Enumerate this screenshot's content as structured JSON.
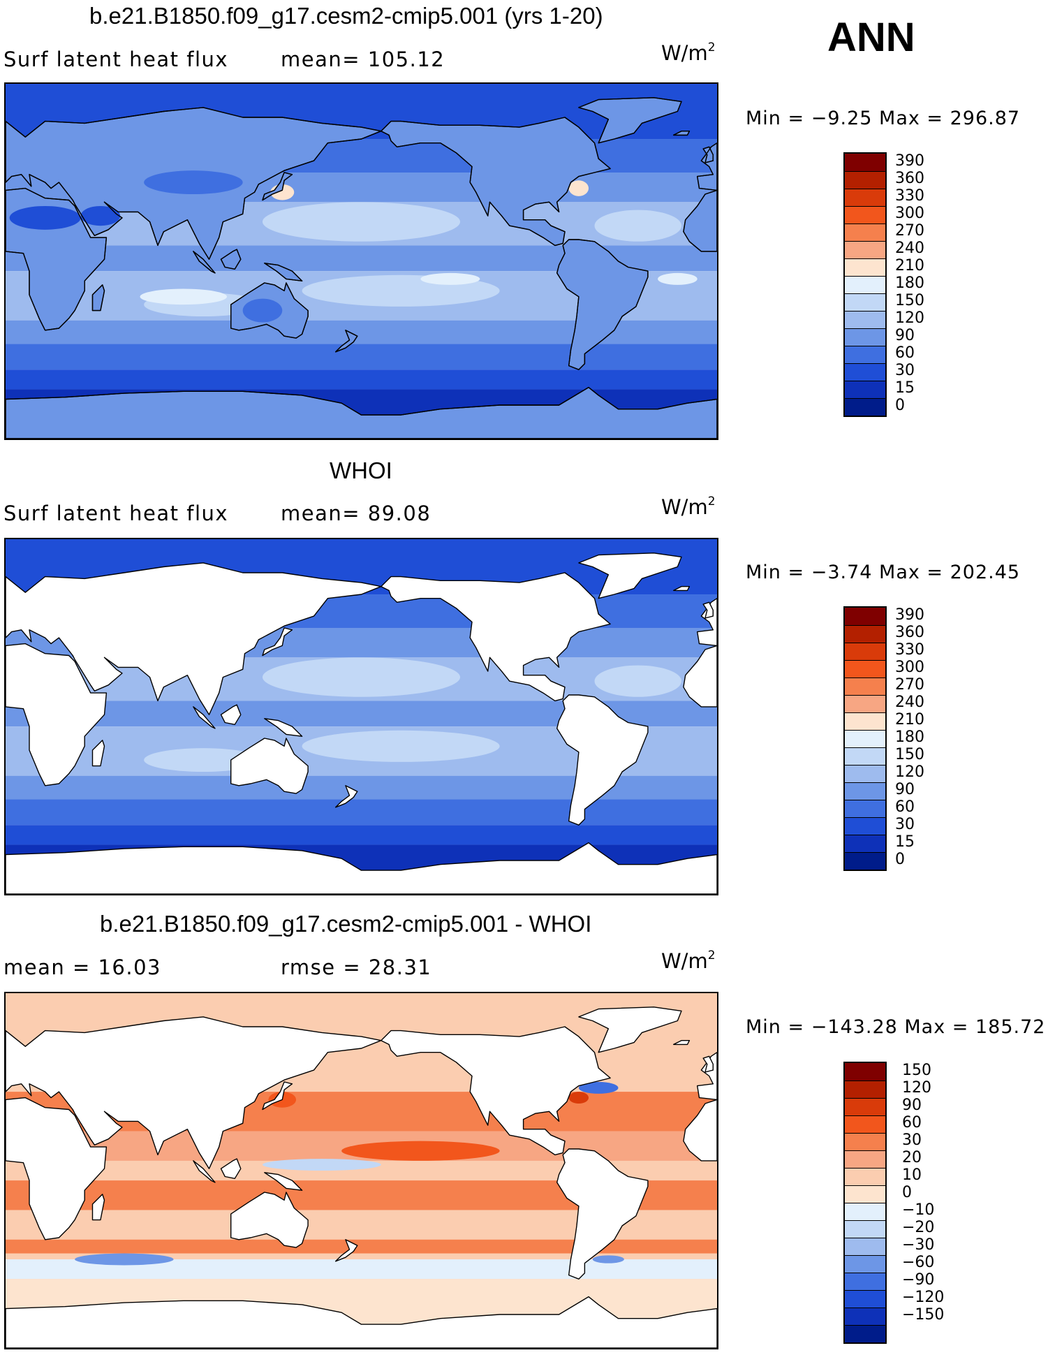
{
  "season": "ANN",
  "panels": [
    {
      "title": "b.e21.B1850.f09_g17.cesm2-cmip5.001 (yrs 1-20)",
      "left_text": "Surf  latent  heat  flux",
      "mid_text": "mean=  105.12",
      "unit_base": "W/m",
      "unit_sup": "2",
      "minmax": "Min  =   −9.25  Max  =  296.87",
      "map_mode": "field",
      "labels": [
        "390",
        "360",
        "330",
        "300",
        "270",
        "240",
        "210",
        "180",
        "150",
        "120",
        "90",
        "60",
        "30",
        "15",
        "0"
      ],
      "colors": [
        "#7f0000",
        "#b32000",
        "#d93b0a",
        "#f2561c",
        "#f5804d",
        "#f7a683",
        "#fde4cf",
        "#e3f0fc",
        "#c2d8f6",
        "#9ebbee",
        "#6d96e6",
        "#3f6fe0",
        "#1f4ed6",
        "#0e31b8",
        "#001c8a"
      ]
    },
    {
      "title": "WHOI",
      "left_text": "Surf  latent  heat  flux",
      "mid_text": "mean=   89.08",
      "unit_base": "W/m",
      "unit_sup": "2",
      "minmax": "Min  =   −3.74  Max  =  202.45",
      "map_mode": "ocean",
      "labels": [
        "390",
        "360",
        "330",
        "300",
        "270",
        "240",
        "210",
        "180",
        "150",
        "120",
        "90",
        "60",
        "30",
        "15",
        "0"
      ],
      "colors": [
        "#7f0000",
        "#b32000",
        "#d93b0a",
        "#f2561c",
        "#f5804d",
        "#f7a683",
        "#fde4cf",
        "#e3f0fc",
        "#c2d8f6",
        "#9ebbee",
        "#6d96e6",
        "#3f6fe0",
        "#1f4ed6",
        "#0e31b8",
        "#001c8a"
      ]
    },
    {
      "title": "b.e21.B1850.f09_g17.cesm2-cmip5.001 - WHOI",
      "left_text": "mean  =    16.03",
      "mid_text": "rmse  =    28.31",
      "unit_base": "W/m",
      "unit_sup": "2",
      "minmax": "Min  =  −143.28  Max  =  185.72",
      "map_mode": "diff",
      "labels": [
        "150",
        "120",
        "90",
        "60",
        "30",
        "20",
        "10",
        "0",
        "−10",
        "−20",
        "−30",
        "−60",
        "−90",
        "−120",
        "−150"
      ],
      "colors": [
        "#7f0000",
        "#b32000",
        "#d93b0a",
        "#f2561c",
        "#f5804d",
        "#f7a683",
        "#fbcdb0",
        "#fde4cf",
        "#e3f0fc",
        "#c2d8f6",
        "#9ebbee",
        "#6d96e6",
        "#3f6fe0",
        "#1f4ed6",
        "#0e31b8",
        "#001c8a"
      ]
    }
  ]
}
